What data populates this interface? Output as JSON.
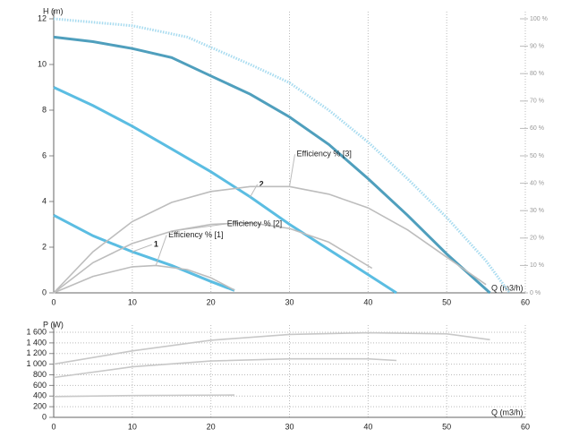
{
  "chart_data": [
    {
      "type": "line",
      "y_label": "H (m)",
      "x_label": "Q (m3/h)",
      "xlim": [
        0,
        60
      ],
      "xticks": [
        0,
        10,
        20,
        30,
        40,
        50,
        60
      ],
      "ylim": [
        0,
        12
      ],
      "yticks": [
        0,
        2,
        4,
        6,
        8,
        10,
        12
      ],
      "y2lim": [
        0,
        100
      ],
      "y2ticks": [
        {
          "value": 0,
          "label": "0 %"
        },
        {
          "value": 10,
          "label": "10 %"
        },
        {
          "value": 20,
          "label": "20 %"
        },
        {
          "value": 30,
          "label": "30 %"
        },
        {
          "value": 40,
          "label": "40 %"
        },
        {
          "value": 50,
          "label": "50 %"
        },
        {
          "value": 60,
          "label": "60 %"
        },
        {
          "value": 70,
          "label": "70 %"
        },
        {
          "value": 80,
          "label": "80 %"
        },
        {
          "value": 90,
          "label": "90 %"
        },
        {
          "value": 100,
          "label": "100 %"
        }
      ],
      "grid": true,
      "series": [
        {
          "color": "#a9dcf0",
          "dashed": true,
          "x": [
            0,
            10,
            17,
            25,
            30,
            35,
            40,
            45,
            50,
            55,
            58
          ],
          "values": [
            12,
            11.7,
            11.2,
            10,
            9.2,
            8,
            6.6,
            5,
            3.3,
            1.4,
            0
          ]
        },
        {
          "color": "#4f9fbd",
          "x": [
            0,
            5,
            10,
            15,
            20,
            25,
            30,
            35,
            40,
            45,
            50,
            55.5
          ],
          "values": [
            11.2,
            11,
            10.7,
            10.3,
            9.5,
            8.7,
            7.7,
            6.5,
            5,
            3.4,
            1.7,
            0
          ]
        },
        {
          "name": "2",
          "color": "#5bbde2",
          "x": [
            0,
            5,
            10,
            15,
            20,
            25,
            30,
            35,
            40,
            43.6
          ],
          "values": [
            9,
            8.2,
            7.3,
            6.3,
            5.3,
            4.2,
            3,
            1.9,
            0.8,
            0
          ]
        },
        {
          "name": "1",
          "color": "#5bbde2",
          "x": [
            0,
            5,
            10,
            15,
            20,
            23
          ],
          "values": [
            3.4,
            2.5,
            1.8,
            1.2,
            0.5,
            0.1
          ]
        },
        {
          "name": "Efficiency % [1]",
          "axis": "y2",
          "color": "#bdbdbd",
          "x": [
            0,
            5,
            10,
            13,
            17,
            20,
            23
          ],
          "values": [
            0,
            6,
            9.5,
            10,
            8.5,
            5.5,
            1
          ]
        },
        {
          "name": "Efficiency % [2]",
          "axis": "y2",
          "color": "#bdbdbd",
          "x": [
            0,
            5,
            10,
            15,
            20,
            25,
            30,
            35,
            40.5
          ],
          "values": [
            0,
            11,
            18,
            22.5,
            25,
            25.6,
            23.5,
            18.5,
            9
          ]
        },
        {
          "name": "Efficiency % [3]",
          "axis": "y2",
          "color": "#bdbdbd",
          "x": [
            0,
            5,
            10,
            15,
            20,
            25,
            30,
            35,
            40,
            45,
            50,
            55
          ],
          "values": [
            0,
            15,
            26,
            33,
            37,
            38.8,
            38.8,
            36,
            31,
            23,
            13,
            3
          ]
        }
      ]
    },
    {
      "type": "line",
      "y_label": "P (W)",
      "x_label": "Q (m3/h)",
      "xlim": [
        0,
        60
      ],
      "xticks": [
        0,
        10,
        20,
        30,
        40,
        50,
        60
      ],
      "ylim": [
        0,
        1600
      ],
      "yticks": [
        0,
        200,
        400,
        600,
        800,
        {
          "value": 1000,
          "label": "1 000"
        },
        {
          "value": 1200,
          "label": "1 200"
        },
        {
          "value": 1400,
          "label": "1 400"
        },
        {
          "value": 1600,
          "label": "1 600"
        }
      ],
      "grid": true,
      "series": [
        {
          "color": "#c8c8c8",
          "x": [
            0,
            10,
            20,
            30,
            40,
            50,
            55.5
          ],
          "values": [
            1000,
            1250,
            1450,
            1560,
            1590,
            1570,
            1460
          ]
        },
        {
          "color": "#c8c8c8",
          "x": [
            0,
            10,
            20,
            30,
            40,
            43.6
          ],
          "values": [
            750,
            950,
            1060,
            1100,
            1100,
            1070
          ]
        },
        {
          "color": "#c8c8c8",
          "x": [
            0,
            10,
            23
          ],
          "values": [
            390,
            410,
            420
          ]
        }
      ]
    }
  ]
}
